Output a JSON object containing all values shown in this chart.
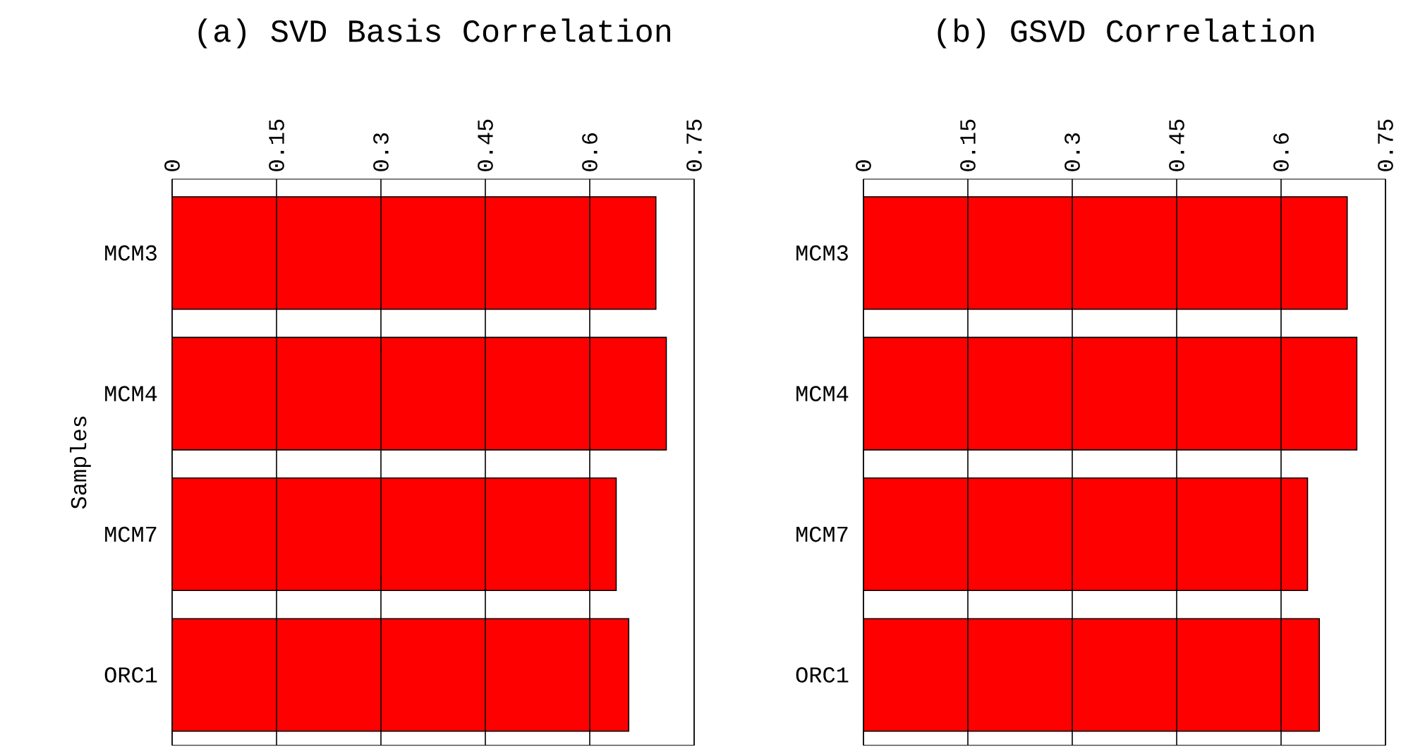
{
  "chart_data": [
    {
      "type": "bar",
      "orientation": "horizontal",
      "title": "(a) SVD Basis Correlation",
      "ylabel": "Samples",
      "categories": [
        "MCM3",
        "MCM4",
        "MCM7",
        "ORC1"
      ],
      "values": [
        0.695,
        0.71,
        0.638,
        0.656
      ],
      "color": "#ff0000",
      "xlim": [
        0,
        0.75
      ],
      "xticks": [
        0,
        0.15,
        0.3,
        0.45,
        0.6,
        0.75
      ],
      "grid": "x"
    },
    {
      "type": "bar",
      "orientation": "horizontal",
      "title": "(b) GSVD Correlation",
      "categories": [
        "MCM3",
        "MCM4",
        "MCM7",
        "ORC1"
      ],
      "values": [
        0.695,
        0.709,
        0.638,
        0.655
      ],
      "color": "#ff0000",
      "xlim": [
        0,
        0.75
      ],
      "xticks": [
        0,
        0.15,
        0.3,
        0.45,
        0.6,
        0.75
      ],
      "grid": "x"
    }
  ]
}
